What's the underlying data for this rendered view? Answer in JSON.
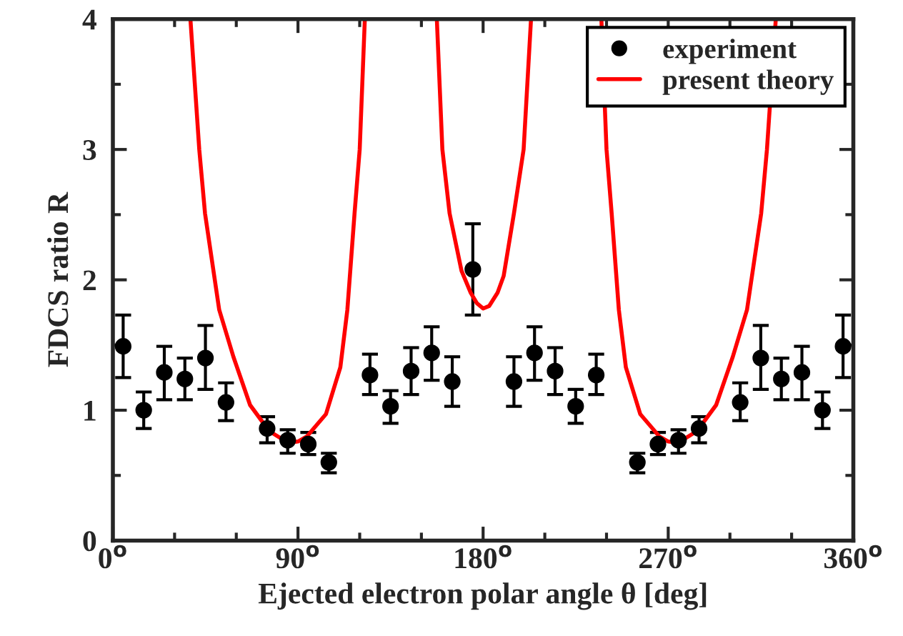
{
  "chart_data": {
    "type": "scatter",
    "xlabel": "Ejected electron polar angle θ [deg]",
    "ylabel": "FDCS ratio R",
    "xlim": [
      0,
      360
    ],
    "ylim": [
      0,
      4
    ],
    "xticks": [
      {
        "value": 0,
        "label": "0$^{o}$"
      },
      {
        "value": 30,
        "label": null
      },
      {
        "value": 60,
        "label": null
      },
      {
        "value": 90,
        "label": "90$^{o}$"
      },
      {
        "value": 120,
        "label": null
      },
      {
        "value": 150,
        "label": null
      },
      {
        "value": 180,
        "label": "180$^{o}$"
      },
      {
        "value": 210,
        "label": null
      },
      {
        "value": 240,
        "label": null
      },
      {
        "value": 270,
        "label": "270$^{o}$"
      },
      {
        "value": 300,
        "label": null
      },
      {
        "value": 330,
        "label": null
      },
      {
        "value": 360,
        "label": "360$^{o}$"
      }
    ],
    "yticks": [
      0,
      {
        "value": 0.5,
        "label": null
      },
      1,
      {
        "value": 1.5,
        "label": null
      },
      2,
      {
        "value": 2.5,
        "label": null
      },
      3,
      {
        "value": 3.5,
        "label": null
      },
      4
    ],
    "grid": false,
    "legend": "top right",
    "series": [
      {
        "name": "experiment",
        "color": "#000000",
        "marker": "circle",
        "x": [
          5,
          15,
          25,
          35,
          45,
          55,
          75,
          85,
          95,
          105,
          125,
          135,
          145,
          155,
          165,
          175,
          195,
          205,
          215,
          225,
          235,
          255,
          265,
          275,
          285,
          305,
          315,
          325,
          335,
          345,
          355
        ],
        "values": [
          1.49,
          1.0,
          1.29,
          1.24,
          1.4,
          1.06,
          0.86,
          0.77,
          0.74,
          0.6,
          1.27,
          1.03,
          1.3,
          1.44,
          1.22,
          2.08,
          1.22,
          1.44,
          1.3,
          1.03,
          1.27,
          0.6,
          0.74,
          0.77,
          0.86,
          1.06,
          1.4,
          1.24,
          1.29,
          1.0,
          1.49
        ],
        "errors": [
          [
            1.25,
            1.73
          ],
          [
            0.86,
            1.14
          ],
          [
            1.08,
            1.49
          ],
          [
            1.08,
            1.4
          ],
          [
            1.16,
            1.65
          ],
          [
            0.92,
            1.21
          ],
          [
            0.75,
            0.95
          ],
          [
            0.67,
            0.85
          ],
          [
            0.66,
            0.83
          ],
          [
            0.52,
            0.67
          ],
          [
            1.12,
            1.43
          ],
          [
            0.9,
            1.15
          ],
          [
            1.12,
            1.48
          ],
          [
            1.23,
            1.64
          ],
          [
            1.03,
            1.41
          ],
          [
            1.73,
            2.43
          ],
          [
            1.03,
            1.41
          ],
          [
            1.23,
            1.64
          ],
          [
            1.12,
            1.48
          ],
          [
            0.9,
            1.16
          ],
          [
            1.12,
            1.43
          ],
          [
            0.52,
            0.67
          ],
          [
            0.66,
            0.83
          ],
          [
            0.67,
            0.85
          ],
          [
            0.75,
            0.95
          ],
          [
            0.92,
            1.21
          ],
          [
            1.16,
            1.65
          ],
          [
            1.08,
            1.4
          ],
          [
            1.08,
            1.49
          ],
          [
            0.86,
            1.14
          ],
          [
            1.25,
            1.73
          ]
        ]
      },
      {
        "name": "present theory",
        "type": "line",
        "color": "#ff0000",
        "marker": "none",
        "line_style": "solid",
        "x": [
          37.7,
          42,
          44.8,
          51.7,
          58.6,
          66.7,
          76,
          85.2,
          90,
          94.4,
          103.6,
          110.6,
          114,
          117.5,
          120,
          122.5,
          140,
          157.5,
          160.2,
          163.7,
          169.5,
          174,
          177,
          180,
          183,
          187,
          190,
          195,
          199.7,
          203.3,
          220,
          237.5,
          240,
          242.5,
          246,
          249.4,
          256.4,
          265.6,
          270,
          274.8,
          284,
          293.3,
          301.4,
          308.3,
          315.2,
          318,
          322.3
        ],
        "values": [
          4,
          3,
          2.51,
          1.77,
          1.41,
          1.04,
          0.84,
          0.75,
          0.76,
          0.8,
          0.97,
          1.33,
          1.77,
          2.51,
          3,
          4,
          null,
          4,
          3,
          2.51,
          2.07,
          1.9,
          1.82,
          1.78,
          1.8,
          1.9,
          2.03,
          2.51,
          3,
          4,
          null,
          4,
          3,
          2.51,
          1.77,
          1.33,
          0.97,
          0.8,
          0.76,
          0.75,
          0.84,
          1.04,
          1.41,
          1.77,
          2.51,
          3,
          4
        ]
      }
    ]
  }
}
